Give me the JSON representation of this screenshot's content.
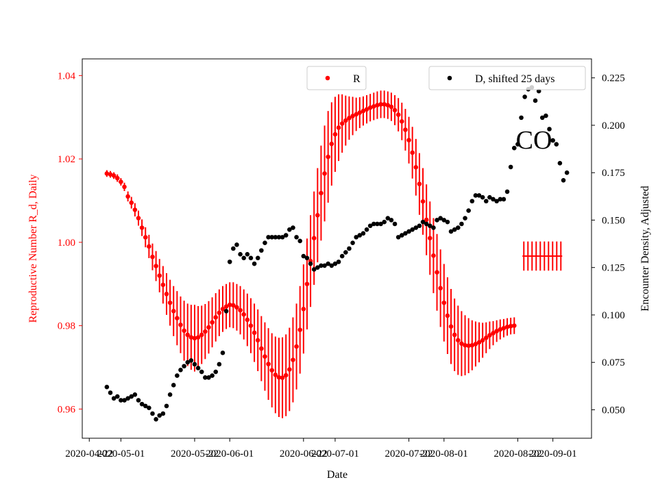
{
  "chart_data": {
    "type": "scatter",
    "xlabel": "Date",
    "y_left_label": "Reproductive Number R_d, Daily",
    "y_right_label": "Encounter Density, Adjusted",
    "annotation": "CO",
    "x_range": [
      "2020-04-20",
      "2020-09-12"
    ],
    "y_left_range": [
      0.953,
      1.044
    ],
    "y_right_range": [
      0.035,
      0.235
    ],
    "x_ticks": [
      "2020-04-22",
      "2020-05-01",
      "2020-05-22",
      "2020-06-01",
      "2020-06-22",
      "2020-07-01",
      "2020-07-22",
      "2020-08-01",
      "2020-08-22",
      "2020-09-01"
    ],
    "y_left_ticks": [
      "0.96",
      "0.98",
      "1.00",
      "1.02",
      "1.04"
    ],
    "y_right_ticks": [
      "0.050",
      "0.075",
      "0.100",
      "0.125",
      "0.150",
      "0.175",
      "0.200",
      "0.225"
    ],
    "grid": false,
    "colors": {
      "r_series": "#ff0000",
      "d_series": "#000000",
      "left_axis": "#ff0000",
      "right_axis": "#000000"
    },
    "legend_r": {
      "label": "R",
      "placement": "top-center"
    },
    "legend_d": {
      "label": "D, shifted 25 days",
      "placement": "top-right"
    },
    "series_r": {
      "name": "R",
      "start_date": "2020-04-27",
      "values": [
        1.0165,
        1.0163,
        1.016,
        1.0154,
        1.0145,
        1.0133,
        1.011,
        1.0095,
        1.0078,
        1.0058,
        1.0035,
        1.0012,
        0.999,
        0.9965,
        0.9943,
        0.992,
        0.9898,
        0.9876,
        0.9855,
        0.9835,
        0.9818,
        0.9802,
        0.9788,
        0.9778,
        0.9772,
        0.977,
        0.9772,
        0.9778,
        0.9786,
        0.9796,
        0.9808,
        0.982,
        0.9831,
        0.984,
        0.9846,
        0.985,
        0.9849,
        0.9844,
        0.9837,
        0.9827,
        0.9814,
        0.98,
        0.9783,
        0.9765,
        0.9745,
        0.9726,
        0.9708,
        0.9693,
        0.9682,
        0.9676,
        0.9675,
        0.9681,
        0.9695,
        0.9718,
        0.975,
        0.979,
        0.984,
        0.99,
        0.9955,
        1.001,
        1.0065,
        1.0118,
        1.0165,
        1.0205,
        1.0236,
        1.0259,
        1.0275,
        1.0285,
        1.0292,
        1.0298,
        1.0303,
        1.0307,
        1.0311,
        1.0315,
        1.0319,
        1.0323,
        1.0326,
        1.0329,
        1.0331,
        1.0331,
        1.0329,
        1.0325,
        1.0317,
        1.0306,
        1.029,
        1.027,
        1.0245,
        1.0215,
        1.018,
        1.014,
        1.0098,
        1.0054,
        1.001,
        0.9968,
        0.9928,
        0.989,
        0.9855,
        0.9824,
        0.9798,
        0.9778,
        0.9765,
        0.9757,
        0.9753,
        0.9752,
        0.9753,
        0.9756,
        0.976,
        0.9765,
        0.9771,
        0.9777,
        0.9782,
        0.9787,
        0.9791,
        0.9794,
        0.9797,
        0.9799,
        0.98
      ],
      "error": [
        0.0008,
        0.0008,
        0.0008,
        0.0009,
        0.0009,
        0.001,
        0.0012,
        0.0014,
        0.0016,
        0.0018,
        0.002,
        0.0024,
        0.0028,
        0.0032,
        0.0036,
        0.004,
        0.0045,
        0.005,
        0.0055,
        0.006,
        0.0065,
        0.0068,
        0.0072,
        0.0075,
        0.0078,
        0.008,
        0.0075,
        0.007,
        0.0066,
        0.0063,
        0.006,
        0.0058,
        0.0056,
        0.0055,
        0.0054,
        0.0054,
        0.0055,
        0.0056,
        0.0058,
        0.006,
        0.0063,
        0.0066,
        0.007,
        0.0074,
        0.0078,
        0.0082,
        0.0086,
        0.0089,
        0.0092,
        0.0095,
        0.0097,
        0.0098,
        0.01,
        0.0102,
        0.0103,
        0.0105,
        0.0107,
        0.0109,
        0.011,
        0.0112,
        0.0113,
        0.0114,
        0.0115,
        0.011,
        0.01,
        0.009,
        0.008,
        0.007,
        0.006,
        0.0052,
        0.0046,
        0.004,
        0.0037,
        0.0035,
        0.0034,
        0.0033,
        0.0033,
        0.0033,
        0.0033,
        0.0033,
        0.0033,
        0.0034,
        0.0036,
        0.004,
        0.0045,
        0.005,
        0.0056,
        0.0062,
        0.0068,
        0.0074,
        0.008,
        0.0085,
        0.0088,
        0.009,
        0.0092,
        0.0093,
        0.0093,
        0.0092,
        0.009,
        0.0087,
        0.0083,
        0.0078,
        0.0072,
        0.0066,
        0.006,
        0.0054,
        0.0048,
        0.0042,
        0.0037,
        0.0033,
        0.0029,
        0.0026,
        0.0024,
        0.0022,
        0.0021,
        0.002,
        0.002
      ],
      "legacy_point": {
        "date": "2020-08-29",
        "value": 0.9967,
        "error": 0.0035
      }
    },
    "series_d": {
      "name": "D, shifted 25 days",
      "start_date": "2020-04-27",
      "values": [
        0.062,
        0.059,
        0.056,
        0.057,
        0.055,
        0.055,
        0.056,
        0.057,
        0.058,
        0.055,
        0.053,
        0.052,
        0.051,
        0.048,
        0.045,
        0.047,
        0.048,
        0.052,
        0.058,
        0.063,
        0.068,
        0.071,
        0.073,
        0.075,
        0.076,
        0.074,
        0.072,
        0.07,
        0.067,
        0.067,
        0.068,
        0.07,
        0.074,
        0.08,
        0.102,
        0.128,
        0.135,
        0.137,
        0.132,
        0.13,
        0.132,
        0.13,
        0.127,
        0.13,
        0.134,
        0.138,
        0.141,
        0.141,
        0.141,
        0.141,
        0.141,
        0.142,
        0.145,
        0.146,
        0.141,
        0.139,
        0.131,
        0.13,
        0.127,
        0.124,
        0.125,
        0.126,
        0.126,
        0.127,
        0.126,
        0.127,
        0.128,
        0.131,
        0.133,
        0.135,
        0.138,
        0.141,
        0.142,
        0.143,
        0.145,
        0.147,
        0.148,
        0.148,
        0.148,
        0.149,
        0.151,
        0.15,
        0.148,
        0.141,
        0.142,
        0.143,
        0.144,
        0.145,
        0.146,
        0.147,
        0.149,
        0.148,
        0.147,
        0.146,
        0.15,
        0.151,
        0.15,
        0.149,
        0.144,
        0.145,
        0.146,
        0.148,
        0.151,
        0.155,
        0.16,
        0.163,
        0.163,
        0.162,
        0.16,
        0.162,
        0.161,
        0.16,
        0.161,
        0.161,
        0.165,
        0.178,
        0.188,
        0.19,
        0.204,
        0.215,
        0.219,
        0.22,
        0.213,
        0.218,
        0.204,
        0.205,
        0.198,
        0.192,
        0.19,
        0.18,
        0.171,
        0.175
      ]
    }
  }
}
